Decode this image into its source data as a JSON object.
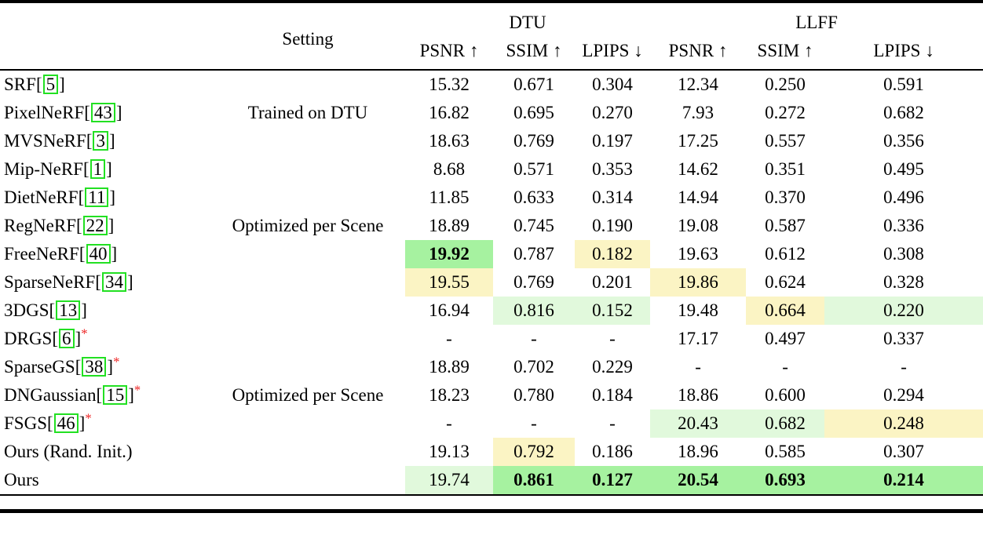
{
  "table": {
    "groups": [
      {
        "label": "DTU"
      },
      {
        "label": "LLFF"
      }
    ],
    "setting_header": "Setting",
    "metric_headers": [
      "PSNR ↑",
      "SSIM ↑",
      "LPIPS ↓",
      "PSNR ↑",
      "SSIM ↑",
      "LPIPS ↓"
    ],
    "highlight_colors": {
      "best": "#a6f2a0",
      "second": "#e1f9dc",
      "third": "#fbf4c4"
    },
    "citation_box_color": "#22e022",
    "asterisk_color": "#ee2222",
    "blocks": [
      {
        "setting": "Trained on DTU",
        "setting_row_index": 1,
        "rows": [
          {
            "method": "SRF",
            "cite": "5",
            "star": false,
            "values": [
              {
                "v": "15.32"
              },
              {
                "v": "0.671"
              },
              {
                "v": "0.304"
              },
              {
                "v": "12.34"
              },
              {
                "v": "0.250"
              },
              {
                "v": "0.591"
              }
            ]
          },
          {
            "method": "PixelNeRF",
            "cite": "43",
            "star": false,
            "values": [
              {
                "v": "16.82"
              },
              {
                "v": "0.695"
              },
              {
                "v": "0.270"
              },
              {
                "v": "7.93"
              },
              {
                "v": "0.272"
              },
              {
                "v": "0.682"
              }
            ]
          },
          {
            "method": "MVSNeRF",
            "cite": "3",
            "star": false,
            "values": [
              {
                "v": "18.63"
              },
              {
                "v": "0.769"
              },
              {
                "v": "0.197"
              },
              {
                "v": "17.25"
              },
              {
                "v": "0.557"
              },
              {
                "v": "0.356"
              }
            ]
          }
        ]
      },
      {
        "setting": "Optimized per Scene",
        "setting_row_index": 2,
        "rows": [
          {
            "method": "Mip-NeRF",
            "cite": "1",
            "star": false,
            "values": [
              {
                "v": "8.68"
              },
              {
                "v": "0.571"
              },
              {
                "v": "0.353"
              },
              {
                "v": "14.62"
              },
              {
                "v": "0.351"
              },
              {
                "v": "0.495"
              }
            ]
          },
          {
            "method": "DietNeRF",
            "cite": "11",
            "star": false,
            "values": [
              {
                "v": "11.85"
              },
              {
                "v": "0.633"
              },
              {
                "v": "0.314"
              },
              {
                "v": "14.94"
              },
              {
                "v": "0.370"
              },
              {
                "v": "0.496"
              }
            ]
          },
          {
            "method": "RegNeRF",
            "cite": "22",
            "star": false,
            "values": [
              {
                "v": "18.89"
              },
              {
                "v": "0.745"
              },
              {
                "v": "0.190"
              },
              {
                "v": "19.08"
              },
              {
                "v": "0.587"
              },
              {
                "v": "0.336"
              }
            ]
          },
          {
            "method": "FreeNeRF",
            "cite": "40",
            "star": false,
            "values": [
              {
                "v": "19.92",
                "hl": "best",
                "bold": true
              },
              {
                "v": "0.787"
              },
              {
                "v": "0.182",
                "hl": "third"
              },
              {
                "v": "19.63"
              },
              {
                "v": "0.612"
              },
              {
                "v": "0.308"
              }
            ]
          },
          {
            "method": "SparseNeRF",
            "cite": "34",
            "star": false,
            "values": [
              {
                "v": "19.55",
                "hl": "third"
              },
              {
                "v": "0.769"
              },
              {
                "v": "0.201"
              },
              {
                "v": "19.86",
                "hl": "third"
              },
              {
                "v": "0.624"
              },
              {
                "v": "0.328"
              }
            ]
          }
        ]
      },
      {
        "setting": "Optimized per Scene",
        "setting_row_index": 3,
        "rows": [
          {
            "method": "3DGS",
            "cite": "13",
            "star": false,
            "values": [
              {
                "v": "16.94"
              },
              {
                "v": "0.816",
                "hl": "second"
              },
              {
                "v": "0.152",
                "hl": "second"
              },
              {
                "v": "19.48"
              },
              {
                "v": "0.664",
                "hl": "third"
              },
              {
                "v": "0.220",
                "hl": "second"
              }
            ]
          },
          {
            "method": "DRGS",
            "cite": "6",
            "star": true,
            "values": [
              {
                "v": "-"
              },
              {
                "v": "-"
              },
              {
                "v": "-"
              },
              {
                "v": "17.17"
              },
              {
                "v": "0.497"
              },
              {
                "v": "0.337"
              }
            ]
          },
          {
            "method": "SparseGS",
            "cite": "38",
            "star": true,
            "values": [
              {
                "v": "18.89"
              },
              {
                "v": "0.702"
              },
              {
                "v": "0.229"
              },
              {
                "v": "-"
              },
              {
                "v": "-"
              },
              {
                "v": "-"
              }
            ]
          },
          {
            "method": "DNGaussian",
            "cite": "15",
            "star": true,
            "values": [
              {
                "v": "18.23"
              },
              {
                "v": "0.780"
              },
              {
                "v": "0.184"
              },
              {
                "v": "18.86"
              },
              {
                "v": "0.600"
              },
              {
                "v": "0.294"
              }
            ]
          },
          {
            "method": "FSGS",
            "cite": "46",
            "star": true,
            "values": [
              {
                "v": "-"
              },
              {
                "v": "-"
              },
              {
                "v": "-"
              },
              {
                "v": "20.43",
                "hl": "second"
              },
              {
                "v": "0.682",
                "hl": "second"
              },
              {
                "v": "0.248",
                "hl": "third"
              }
            ]
          },
          {
            "method": "Ours (Rand. Init.)",
            "cite": null,
            "star": false,
            "values": [
              {
                "v": "19.13"
              },
              {
                "v": "0.792",
                "hl": "third"
              },
              {
                "v": "0.186"
              },
              {
                "v": "18.96"
              },
              {
                "v": "0.585"
              },
              {
                "v": "0.307"
              }
            ]
          },
          {
            "method": "Ours",
            "cite": null,
            "star": false,
            "values": [
              {
                "v": "19.74",
                "hl": "second"
              },
              {
                "v": "0.861",
                "hl": "best",
                "bold": true
              },
              {
                "v": "0.127",
                "hl": "best",
                "bold": true
              },
              {
                "v": "20.54",
                "hl": "best",
                "bold": true
              },
              {
                "v": "0.693",
                "hl": "best",
                "bold": true
              },
              {
                "v": "0.214",
                "hl": "best",
                "bold": true
              }
            ]
          }
        ]
      }
    ]
  }
}
